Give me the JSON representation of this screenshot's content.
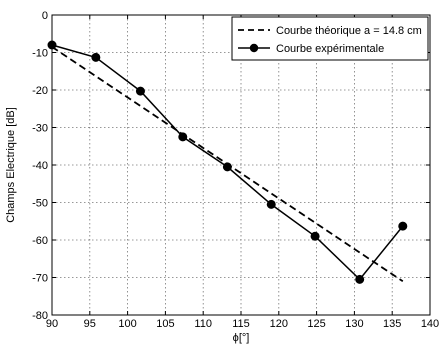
{
  "chart_data": {
    "type": "line",
    "title": "",
    "xlabel": "ϕ[°]",
    "ylabel": "Champs Electrique [dB]",
    "xlim": [
      90,
      140
    ],
    "ylim": [
      -80,
      0
    ],
    "xticks": [
      90,
      95,
      100,
      105,
      110,
      115,
      120,
      125,
      130,
      135,
      140
    ],
    "yticks": [
      0,
      -10,
      -20,
      -30,
      -40,
      -50,
      -60,
      -70,
      -80
    ],
    "grid": true,
    "legend_position": "top-right",
    "series": [
      {
        "name": "Courbe théorique a = 14.8 cm",
        "style": "dashed",
        "color": "#000000",
        "marker": "none",
        "x": [
          90,
          136.4
        ],
        "y": [
          -8.5,
          -71
        ]
      },
      {
        "name": "Courbe expérimentale",
        "style": "solid",
        "color": "#000000",
        "marker": "circle",
        "x": [
          90,
          95.8,
          101.7,
          107.3,
          113.2,
          119,
          124.8,
          130.7,
          136.4
        ],
        "y": [
          -8,
          -11.3,
          -20.3,
          -32.5,
          -40.5,
          -50.5,
          -59,
          -70.5,
          -56.3
        ]
      }
    ]
  }
}
